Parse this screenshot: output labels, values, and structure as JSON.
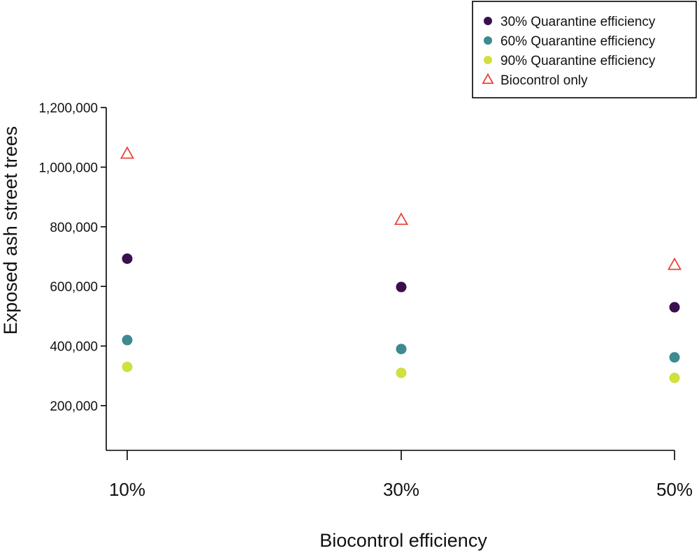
{
  "chart_data": {
    "type": "scatter",
    "xlabel": "Biocontrol efficiency",
    "ylabel": "Exposed ash street trees",
    "categories": [
      "10%",
      "30%",
      "50%"
    ],
    "ylim": [
      50000,
      1200000
    ],
    "yticks": [
      200000,
      400000,
      600000,
      800000,
      1000000,
      1200000
    ],
    "ytick_labels": [
      "200,000",
      "400,000",
      "600,000",
      "800,000",
      "1,000,000",
      "1,200,000"
    ],
    "legend_position": "top-right",
    "grid": false,
    "series": [
      {
        "name": "30% Quarantine efficiency",
        "marker": "circle",
        "color": "#3b0f4e",
        "values": [
          693000,
          598000,
          530000
        ]
      },
      {
        "name": "60% Quarantine efficiency",
        "marker": "circle",
        "color": "#3d8a91",
        "values": [
          420000,
          390000,
          362000
        ]
      },
      {
        "name": "90% Quarantine efficiency",
        "marker": "circle",
        "color": "#cfe03f",
        "values": [
          330000,
          310000,
          293000
        ]
      },
      {
        "name": "Biocontrol only",
        "marker": "triangle-open",
        "color": "#e8453c",
        "values": [
          1045000,
          823000,
          672000
        ]
      }
    ]
  }
}
